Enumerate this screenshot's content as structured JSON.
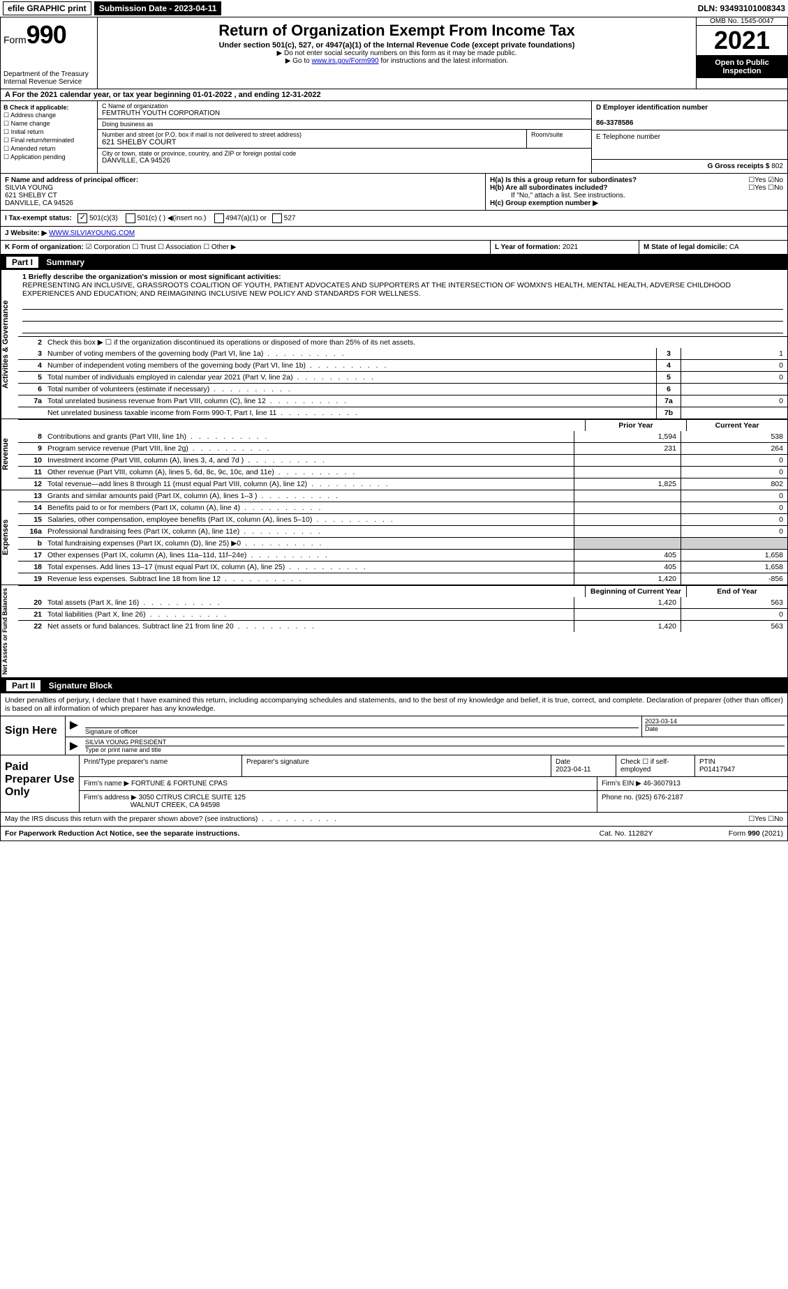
{
  "topbar": {
    "efile": "efile GRAPHIC print",
    "submission": "Submission Date - 2023-04-11",
    "dln": "DLN: 93493101008343"
  },
  "header": {
    "form_prefix": "Form",
    "form_number": "990",
    "title": "Return of Organization Exempt From Income Tax",
    "subtitle": "Under section 501(c), 527, or 4947(a)(1) of the Internal Revenue Code (except private foundations)",
    "note1": "▶ Do not enter social security numbers on this form as it may be made public.",
    "note2_prefix": "▶ Go to ",
    "note2_link": "www.irs.gov/Form990",
    "note2_suffix": " for instructions and the latest information.",
    "dept": "Department of the Treasury",
    "irs": "Internal Revenue Service",
    "omb": "OMB No. 1545-0047",
    "year": "2021",
    "open": "Open to Public Inspection"
  },
  "row_a": "A For the 2021 calendar year, or tax year beginning 01-01-2022   , and ending 12-31-2022",
  "section_b": {
    "label": "B Check if applicable:",
    "opts": [
      "Address change",
      "Name change",
      "Initial return",
      "Final return/terminated",
      "Amended return",
      "Application pending"
    ]
  },
  "section_c": {
    "name_label": "C Name of organization",
    "name": "FEMTRUTH YOUTH CORPORATION",
    "dba_label": "Doing business as",
    "dba": "",
    "addr_label": "Number and street (or P.O. box if mail is not delivered to street address)",
    "room_label": "Room/suite",
    "addr": "621 SHELBY COURT",
    "city_label": "City or town, state or province, country, and ZIP or foreign postal code",
    "city": "DANVILLE, CA  94526"
  },
  "section_d": {
    "ein_label": "D Employer identification number",
    "ein": "86-3378586",
    "phone_label": "E Telephone number",
    "phone": "",
    "gross_label": "G Gross receipts $",
    "gross": "802"
  },
  "section_f": {
    "label": "F Name and address of principal officer:",
    "name": "SILVIA YOUNG",
    "addr1": "621 SHELBY CT",
    "addr2": "DANVILLE, CA  94526"
  },
  "section_h": {
    "ha": "H(a)  Is this a group return for subordinates?",
    "ha_ans": "☐Yes ☑No",
    "hb": "H(b)  Are all subordinates included?",
    "hb_ans": "☐Yes ☐No",
    "hb_note": "If \"No,\" attach a list. See instructions.",
    "hc": "H(c)  Group exemption number ▶"
  },
  "section_i": {
    "label": "I   Tax-exempt status:",
    "opt1": "501(c)(3)",
    "opt2": "501(c) (   ) ◀(insert no.)",
    "opt3": "4947(a)(1) or",
    "opt4": "527"
  },
  "section_j": {
    "label": "J   Website: ▶",
    "value": "WWW.SILVIAYOUNG.COM"
  },
  "section_k": {
    "label": "K Form of organization:",
    "opts": "☑ Corporation  ☐ Trust  ☐ Association  ☐ Other ▶"
  },
  "section_l": {
    "label": "L Year of formation:",
    "value": "2021"
  },
  "section_m": {
    "label": "M State of legal domicile:",
    "value": "CA"
  },
  "part1": {
    "header_part": "Part I",
    "header_title": "Summary",
    "mission_label": "1 Briefly describe the organization's mission or most significant activities:",
    "mission": "REPRESENTING AN INCLUSIVE, GRASSROOTS COALITION OF YOUTH, PATIENT ADVOCATES AND SUPPORTERS AT THE INTERSECTION OF WOMXN'S HEALTH, MENTAL HEALTH, ADVERSE CHILDHOOD EXPERIENCES AND EDUCATION; AND REIMAGINING INCLUSIVE NEW POLICY AND STANDARDS FOR WELLNESS.",
    "line2": "Check this box ▶ ☐  if the organization discontinued its operations or disposed of more than 25% of its net assets.",
    "lines_gov": [
      {
        "n": "3",
        "d": "Number of voting members of the governing body (Part VI, line 1a)",
        "box": "3",
        "v": "1"
      },
      {
        "n": "4",
        "d": "Number of independent voting members of the governing body (Part VI, line 1b)",
        "box": "4",
        "v": "0"
      },
      {
        "n": "5",
        "d": "Total number of individuals employed in calendar year 2021 (Part V, line 2a)",
        "box": "5",
        "v": "0"
      },
      {
        "n": "6",
        "d": "Total number of volunteers (estimate if necessary)",
        "box": "6",
        "v": ""
      },
      {
        "n": "7a",
        "d": "Total unrelated business revenue from Part VIII, column (C), line 12",
        "box": "7a",
        "v": "0"
      },
      {
        "n": "",
        "d": "Net unrelated business taxable income from Form 990-T, Part I, line 11",
        "box": "7b",
        "v": ""
      }
    ],
    "col_prior": "Prior Year",
    "col_current": "Current Year",
    "lines_rev": [
      {
        "n": "8",
        "d": "Contributions and grants (Part VIII, line 1h)",
        "p": "1,594",
        "c": "538"
      },
      {
        "n": "9",
        "d": "Program service revenue (Part VIII, line 2g)",
        "p": "231",
        "c": "264"
      },
      {
        "n": "10",
        "d": "Investment income (Part VIII, column (A), lines 3, 4, and 7d )",
        "p": "",
        "c": "0"
      },
      {
        "n": "11",
        "d": "Other revenue (Part VIII, column (A), lines 5, 6d, 8c, 9c, 10c, and 11e)",
        "p": "",
        "c": "0"
      },
      {
        "n": "12",
        "d": "Total revenue—add lines 8 through 11 (must equal Part VIII, column (A), line 12)",
        "p": "1,825",
        "c": "802"
      }
    ],
    "lines_exp": [
      {
        "n": "13",
        "d": "Grants and similar amounts paid (Part IX, column (A), lines 1–3 )",
        "p": "",
        "c": "0"
      },
      {
        "n": "14",
        "d": "Benefits paid to or for members (Part IX, column (A), line 4)",
        "p": "",
        "c": "0"
      },
      {
        "n": "15",
        "d": "Salaries, other compensation, employee benefits (Part IX, column (A), lines 5–10)",
        "p": "",
        "c": "0"
      },
      {
        "n": "16a",
        "d": "Professional fundraising fees (Part IX, column (A), line 11e)",
        "p": "",
        "c": "0"
      },
      {
        "n": "b",
        "d": "Total fundraising expenses (Part IX, column (D), line 25) ▶0",
        "p": "grey",
        "c": "grey"
      },
      {
        "n": "17",
        "d": "Other expenses (Part IX, column (A), lines 11a–11d, 11f–24e)",
        "p": "405",
        "c": "1,658"
      },
      {
        "n": "18",
        "d": "Total expenses. Add lines 13–17 (must equal Part IX, column (A), line 25)",
        "p": "405",
        "c": "1,658"
      },
      {
        "n": "19",
        "d": "Revenue less expenses. Subtract line 18 from line 12",
        "p": "1,420",
        "c": "-856"
      }
    ],
    "col_begin": "Beginning of Current Year",
    "col_end": "End of Year",
    "lines_net": [
      {
        "n": "20",
        "d": "Total assets (Part X, line 16)",
        "p": "1,420",
        "c": "563"
      },
      {
        "n": "21",
        "d": "Total liabilities (Part X, line 26)",
        "p": "",
        "c": "0"
      },
      {
        "n": "22",
        "d": "Net assets or fund balances. Subtract line 21 from line 20",
        "p": "1,420",
        "c": "563"
      }
    ],
    "side_gov": "Activities & Governance",
    "side_rev": "Revenue",
    "side_exp": "Expenses",
    "side_net": "Net Assets or Fund Balances"
  },
  "part2": {
    "header_part": "Part II",
    "header_title": "Signature Block",
    "penalty": "Under penalties of perjury, I declare that I have examined this return, including accompanying schedules and statements, and to the best of my knowledge and belief, it is true, correct, and complete. Declaration of preparer (other than officer) is based on all information of which preparer has any knowledge.",
    "sign_here": "Sign Here",
    "sig_officer": "Signature of officer",
    "sig_date": "2023-03-14",
    "date_label": "Date",
    "sig_name": "SILVIA YOUNG  PRESIDENT",
    "sig_name_label": "Type or print name and title",
    "paid": "Paid Preparer Use Only",
    "prep_name_label": "Print/Type preparer's name",
    "prep_sig_label": "Preparer's signature",
    "prep_date_label": "Date",
    "prep_date": "2023-04-11",
    "prep_check": "Check ☐ if self-employed",
    "ptin_label": "PTIN",
    "ptin": "P01417947",
    "firm_name_label": "Firm's name    ▶",
    "firm_name": "FORTUNE & FORTUNE CPAS",
    "firm_ein_label": "Firm's EIN ▶",
    "firm_ein": "46-3607913",
    "firm_addr_label": "Firm's address ▶",
    "firm_addr1": "3050 CITRUS CIRCLE SUITE 125",
    "firm_addr2": "WALNUT CREEK, CA  94598",
    "firm_phone_label": "Phone no.",
    "firm_phone": "(925) 676-2187",
    "may_irs": "May the IRS discuss this return with the preparer shown above? (see instructions)",
    "may_irs_ans": "☐Yes  ☐No"
  },
  "footer": {
    "left": "For Paperwork Reduction Act Notice, see the separate instructions.",
    "mid": "Cat. No. 11282Y",
    "right": "Form 990 (2021)"
  }
}
